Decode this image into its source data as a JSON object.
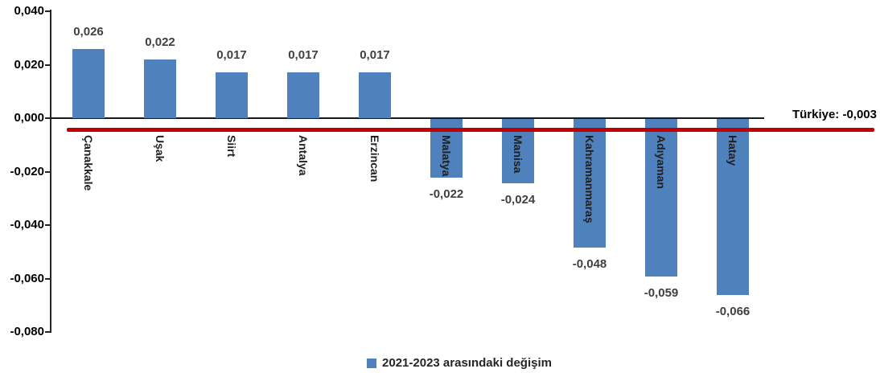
{
  "chart_data": {
    "type": "bar",
    "categories": [
      "Çanakkale",
      "Uşak",
      "Siirt",
      "Antalya",
      "Erzincan",
      "Malatya",
      "Manisa",
      "Kahramanmaraş",
      "Adıyaman",
      "Hatay"
    ],
    "values": [
      0.026,
      0.022,
      0.017,
      0.017,
      0.017,
      -0.022,
      -0.024,
      -0.048,
      -0.059,
      -0.066
    ],
    "value_labels": [
      "0,026",
      "0,022",
      "0,017",
      "0,017",
      "0,017",
      "-0,022",
      "-0,024",
      "-0,048",
      "-0,059",
      "-0,066"
    ],
    "y_ticks": [
      {
        "value": 0.04,
        "label": "0,040"
      },
      {
        "value": 0.02,
        "label": "0,020"
      },
      {
        "value": 0.0,
        "label": "0,000"
      },
      {
        "value": -0.02,
        "label": "-0,020"
      },
      {
        "value": -0.04,
        "label": "-0,040"
      },
      {
        "value": -0.06,
        "label": "-0,060"
      },
      {
        "value": -0.08,
        "label": "-0,080"
      }
    ],
    "ylim": [
      -0.08,
      0.04
    ],
    "grid": false,
    "bar_color": "#4F81BD",
    "value_label_color": "#404040",
    "reference_line": {
      "label": "Türkiye: -0,003",
      "value": -0.003,
      "color": "#C00000"
    },
    "legend": {
      "label": "2021-2023 arasındaki değişim",
      "position": "bottom",
      "swatch_color": "#4F81BD"
    }
  }
}
